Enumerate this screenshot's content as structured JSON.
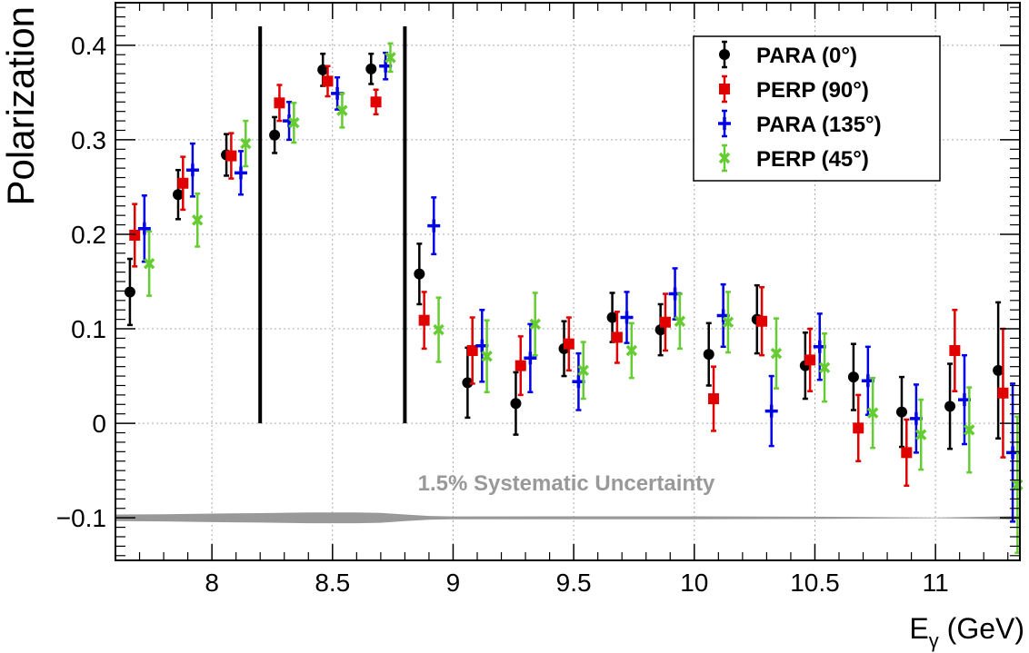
{
  "chart_data": {
    "type": "scatter",
    "ylabel": "Polarization",
    "xlabel_main": "E",
    "xlabel_sub": "γ",
    "xlabel_unit": " (GeV)",
    "xlim": [
      7.6,
      11.35
    ],
    "ylim": [
      -0.145,
      0.445
    ],
    "x_ticks": [
      8,
      8.5,
      9,
      9.5,
      10,
      10.5,
      11
    ],
    "x_tick_labels": [
      "8",
      "8.5",
      "9",
      "9.5",
      "10",
      "10.5",
      "11"
    ],
    "y_ticks": [
      -0.1,
      0,
      0.1,
      0.2,
      0.3,
      0.4
    ],
    "y_tick_labels": [
      "−0.1",
      "0",
      "0.1",
      "0.2",
      "0.3",
      "0.4"
    ],
    "grid": true,
    "legend_position": "top-right",
    "vertical_lines_x": [
      8.2,
      8.8
    ],
    "systematic_band": {
      "label": "1.5% Systematic Uncertainty",
      "center": -0.1,
      "color": "#999999",
      "x": [
        7.6,
        7.8,
        8.0,
        8.2,
        8.4,
        8.6,
        8.7,
        8.8,
        8.9,
        9.0,
        9.5,
        10.0,
        10.5,
        11.0,
        11.35
      ],
      "halfwidth": [
        0.0035,
        0.0038,
        0.0045,
        0.005,
        0.0057,
        0.0057,
        0.0052,
        0.0035,
        0.002,
        0.0015,
        0.0016,
        0.0016,
        0.0012,
        0.0003,
        0.0018
      ]
    },
    "series": [
      {
        "name": "PARA (0°)",
        "color": "#000000",
        "marker": "circle",
        "x": [
          7.66,
          7.86,
          8.06,
          8.26,
          8.46,
          8.66,
          8.86,
          9.06,
          9.26,
          9.46,
          9.66,
          9.86,
          10.06,
          10.26,
          10.46,
          10.66,
          10.86,
          11.06,
          11.26
        ],
        "y": [
          0.139,
          0.242,
          0.284,
          0.305,
          0.374,
          0.375,
          0.158,
          0.043,
          0.021,
          0.079,
          0.112,
          0.099,
          0.073,
          0.11,
          0.061,
          0.049,
          0.012,
          0.018,
          0.056
        ],
        "err": [
          0.035,
          0.026,
          0.022,
          0.019,
          0.017,
          0.016,
          0.032,
          0.037,
          0.033,
          0.029,
          0.026,
          0.027,
          0.033,
          0.036,
          0.035,
          0.035,
          0.037,
          0.045,
          0.072
        ]
      },
      {
        "name": "PERP (90°)",
        "color": "#e00000",
        "marker": "square",
        "x": [
          7.68,
          7.88,
          8.08,
          8.28,
          8.48,
          8.68,
          8.88,
          9.08,
          9.28,
          9.48,
          9.68,
          9.88,
          10.08,
          10.28,
          10.48,
          10.68,
          10.88,
          11.08,
          11.28
        ],
        "y": [
          0.199,
          0.254,
          0.283,
          0.339,
          0.362,
          0.34,
          0.109,
          0.077,
          0.061,
          0.084,
          0.091,
          0.107,
          0.026,
          0.108,
          0.067,
          -0.005,
          -0.031,
          0.077,
          0.032
        ],
        "err": [
          0.033,
          0.028,
          0.024,
          0.019,
          0.016,
          0.013,
          0.03,
          0.035,
          0.031,
          0.028,
          0.027,
          0.03,
          0.034,
          0.036,
          0.033,
          0.035,
          0.035,
          0.043,
          0.068
        ]
      },
      {
        "name": "PARA (135°)",
        "color": "#0000e6",
        "marker": "plus",
        "x": [
          7.72,
          7.92,
          8.12,
          8.32,
          8.52,
          8.72,
          8.92,
          9.12,
          9.32,
          9.52,
          9.72,
          9.92,
          10.12,
          10.32,
          10.52,
          10.72,
          10.92,
          11.12,
          11.32
        ],
        "y": [
          0.206,
          0.268,
          0.265,
          0.32,
          0.349,
          0.378,
          0.209,
          0.082,
          0.069,
          0.044,
          0.112,
          0.137,
          0.114,
          0.013,
          0.081,
          0.045,
          0.005,
          0.025,
          -0.031
        ],
        "err": [
          0.035,
          0.028,
          0.023,
          0.02,
          0.017,
          0.014,
          0.03,
          0.038,
          0.036,
          0.03,
          0.027,
          0.027,
          0.033,
          0.037,
          0.035,
          0.036,
          0.036,
          0.047,
          0.073
        ]
      },
      {
        "name": "PERP (45°)",
        "color": "#66cc33",
        "marker": "x",
        "x": [
          7.74,
          7.94,
          8.14,
          8.34,
          8.54,
          8.74,
          8.94,
          9.14,
          9.34,
          9.54,
          9.74,
          9.94,
          10.14,
          10.34,
          10.54,
          10.74,
          10.94,
          11.14,
          11.34
        ],
        "y": [
          0.169,
          0.215,
          0.296,
          0.318,
          0.331,
          0.387,
          0.099,
          0.071,
          0.105,
          0.056,
          0.077,
          0.108,
          0.107,
          0.074,
          0.059,
          0.011,
          -0.012,
          -0.007,
          -0.065
        ],
        "err": [
          0.034,
          0.028,
          0.024,
          0.021,
          0.018,
          0.015,
          0.034,
          0.038,
          0.033,
          0.03,
          0.029,
          0.029,
          0.032,
          0.037,
          0.036,
          0.037,
          0.037,
          0.045,
          0.072
        ]
      }
    ]
  }
}
